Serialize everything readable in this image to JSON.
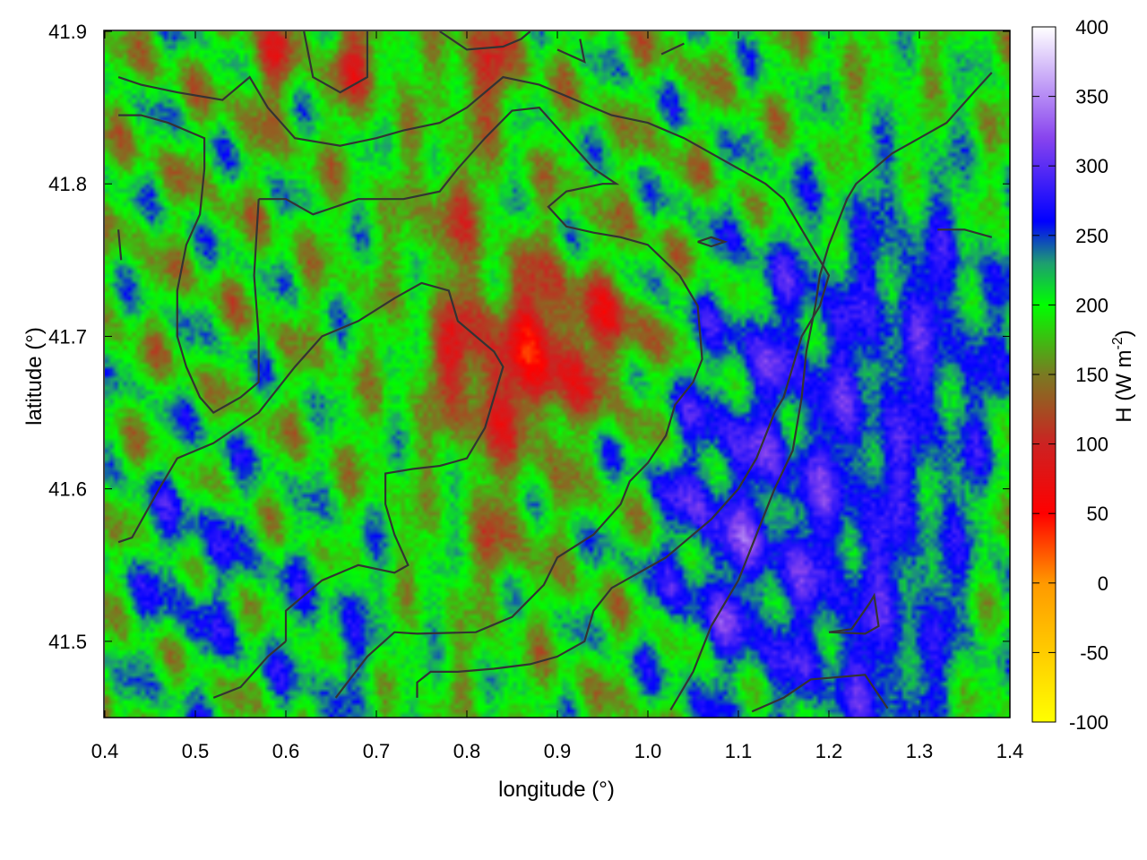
{
  "chart_data": {
    "type": "heatmap",
    "xlabel": "longitude (°)",
    "ylabel": "latitude (°)",
    "colorbar_label": "H (W m-2)",
    "colorbar_label_parts": {
      "base": "H (W m",
      "sup": "-2",
      "close": ")"
    },
    "xlim": [
      0.4,
      1.4
    ],
    "ylim": [
      41.45,
      41.9
    ],
    "x_ticks": [
      "0.4",
      "0.5",
      "0.6",
      "0.7",
      "0.8",
      "0.9",
      "1.0",
      "1.1",
      "1.2",
      "1.3",
      "1.4"
    ],
    "x_tick_values": [
      0.4,
      0.5,
      0.6,
      0.7,
      0.8,
      0.9,
      1.0,
      1.1,
      1.2,
      1.3,
      1.4
    ],
    "y_ticks": [
      "41.5",
      "41.6",
      "41.7",
      "41.8",
      "41.9"
    ],
    "y_tick_values": [
      41.5,
      41.6,
      41.7,
      41.8,
      41.9
    ],
    "colorbar_range": [
      -100,
      400
    ],
    "colorbar_ticks": [
      "400",
      "350",
      "300",
      "250",
      "200",
      "150",
      "100",
      "50",
      "0",
      "-50",
      "-100"
    ],
    "colorbar_tick_values": [
      400,
      350,
      300,
      250,
      200,
      150,
      100,
      50,
      0,
      -50,
      -100
    ],
    "colormap": [
      {
        "value": -100,
        "color": "#ffff00"
      },
      {
        "value": 0,
        "color": "#ff9900"
      },
      {
        "value": 50,
        "color": "#ff0000"
      },
      {
        "value": 100,
        "color": "#cc2222"
      },
      {
        "value": 150,
        "color": "#7a7a22"
      },
      {
        "value": 200,
        "color": "#00ff00"
      },
      {
        "value": 230,
        "color": "#1e9e70"
      },
      {
        "value": 260,
        "color": "#0000ff"
      },
      {
        "value": 320,
        "color": "#8844ee"
      },
      {
        "value": 400,
        "color": "#ffffff"
      }
    ],
    "field_features": [
      {
        "lon": 0.88,
        "lat": 41.69,
        "value": 60,
        "radius": 0.05
      },
      {
        "lon": 0.8,
        "lat": 41.69,
        "value": 95,
        "radius": 0.04
      },
      {
        "lon": 0.83,
        "lat": 41.66,
        "value": 110,
        "radius": 0.04
      },
      {
        "lon": 0.96,
        "lat": 41.7,
        "value": 110,
        "radius": 0.04
      },
      {
        "lon": 0.78,
        "lat": 41.78,
        "value": 120,
        "radius": 0.03
      },
      {
        "lon": 0.82,
        "lat": 41.88,
        "value": 120,
        "radius": 0.04
      },
      {
        "lon": 0.68,
        "lat": 41.88,
        "value": 120,
        "radius": 0.03
      },
      {
        "lon": 0.58,
        "lat": 41.88,
        "value": 125,
        "radius": 0.03
      },
      {
        "lon": 0.84,
        "lat": 41.57,
        "value": 140,
        "radius": 0.03
      },
      {
        "lon": 1.2,
        "lat": 41.6,
        "value": 270,
        "radius": 0.14
      },
      {
        "lon": 1.3,
        "lat": 41.7,
        "value": 265,
        "radius": 0.1
      },
      {
        "lon": 1.1,
        "lat": 41.55,
        "value": 270,
        "radius": 0.08
      },
      {
        "lon": 1.08,
        "lat": 41.6,
        "value": 275,
        "radius": 0.04
      },
      {
        "lon": 1.25,
        "lat": 41.5,
        "value": 265,
        "radius": 0.09
      },
      {
        "lon": 1.15,
        "lat": 41.67,
        "value": 262,
        "radius": 0.08
      },
      {
        "lon": 0.5,
        "lat": 41.55,
        "value": 235,
        "radius": 0.08
      },
      {
        "lon": 0.65,
        "lat": 41.5,
        "value": 232,
        "radius": 0.07
      }
    ],
    "contours": [
      [
        [
          0.415,
          41.565
        ],
        [
          0.43,
          41.568
        ],
        [
          0.46,
          41.6
        ],
        [
          0.48,
          41.62
        ],
        [
          0.52,
          41.63
        ],
        [
          0.57,
          41.65
        ],
        [
          0.61,
          41.68
        ],
        [
          0.64,
          41.7
        ],
        [
          0.68,
          41.71
        ],
        [
          0.72,
          41.725
        ],
        [
          0.75,
          41.735
        ],
        [
          0.78,
          41.73
        ],
        [
          0.79,
          41.71
        ],
        [
          0.83,
          41.69
        ],
        [
          0.84,
          41.68
        ],
        [
          0.83,
          41.66
        ],
        [
          0.82,
          41.64
        ],
        [
          0.8,
          41.62
        ],
        [
          0.77,
          41.615
        ],
        [
          0.74,
          41.613
        ],
        [
          0.71,
          41.61
        ],
        [
          0.71,
          41.59
        ],
        [
          0.72,
          41.57
        ],
        [
          0.735,
          41.55
        ],
        [
          0.72,
          41.545
        ],
        [
          0.68,
          41.55
        ],
        [
          0.64,
          41.54
        ],
        [
          0.6,
          41.52
        ],
        [
          0.6,
          41.5
        ]
      ],
      [
        [
          0.6,
          41.5
        ],
        [
          0.58,
          41.49
        ],
        [
          0.55,
          41.47
        ],
        [
          0.52,
          41.463
        ]
      ],
      [
        [
          0.655,
          41.463
        ],
        [
          0.69,
          41.49
        ],
        [
          0.72,
          41.506
        ],
        [
          0.745,
          41.505
        ],
        [
          0.81,
          41.506
        ],
        [
          0.85,
          41.516
        ],
        [
          0.885,
          41.537
        ],
        [
          0.9,
          41.555
        ],
        [
          0.94,
          41.57
        ],
        [
          0.97,
          41.59
        ],
        [
          0.98,
          41.605
        ],
        [
          1.0,
          41.617
        ],
        [
          1.02,
          41.635
        ],
        [
          1.03,
          41.655
        ],
        [
          1.05,
          41.67
        ],
        [
          1.06,
          41.685
        ],
        [
          1.055,
          41.72
        ],
        [
          1.035,
          41.74
        ],
        [
          1.0,
          41.76
        ],
        [
          0.97,
          41.765
        ],
        [
          0.94,
          41.768
        ],
        [
          0.91,
          41.772
        ],
        [
          0.89,
          41.785
        ],
        [
          0.91,
          41.795
        ],
        [
          0.95,
          41.8
        ],
        [
          0.965,
          41.8
        ],
        [
          0.94,
          41.81
        ],
        [
          0.91,
          41.83
        ],
        [
          0.88,
          41.85
        ],
        [
          0.85,
          41.848
        ],
        [
          0.82,
          41.83
        ],
        [
          0.79,
          41.81
        ],
        [
          0.77,
          41.795
        ],
        [
          0.73,
          41.79
        ],
        [
          0.68,
          41.79
        ],
        [
          0.63,
          41.78
        ],
        [
          0.6,
          41.79
        ],
        [
          0.57,
          41.79
        ]
      ],
      [
        [
          0.57,
          41.79
        ],
        [
          0.565,
          41.74
        ],
        [
          0.57,
          41.7
        ],
        [
          0.57,
          41.67
        ],
        [
          0.55,
          41.66
        ],
        [
          0.52,
          41.65
        ],
        [
          0.505,
          41.66
        ],
        [
          0.49,
          41.68
        ],
        [
          0.48,
          41.7
        ],
        [
          0.48,
          41.73
        ],
        [
          0.49,
          41.76
        ],
        [
          0.505,
          41.78
        ],
        [
          0.51,
          41.81
        ],
        [
          0.51,
          41.83
        ],
        [
          0.47,
          41.84
        ],
        [
          0.44,
          41.845
        ],
        [
          0.415,
          41.845
        ]
      ],
      [
        [
          0.415,
          41.87
        ],
        [
          0.44,
          41.865
        ],
        [
          0.48,
          41.86
        ],
        [
          0.53,
          41.855
        ],
        [
          0.56,
          41.87
        ],
        [
          0.58,
          41.85
        ],
        [
          0.61,
          41.83
        ],
        [
          0.66,
          41.825
        ],
        [
          0.7,
          41.83
        ],
        [
          0.73,
          41.835
        ],
        [
          0.77,
          41.84
        ],
        [
          0.8,
          41.85
        ],
        [
          0.82,
          41.86
        ],
        [
          0.84,
          41.87
        ],
        [
          0.88,
          41.865
        ],
        [
          0.9,
          41.86
        ],
        [
          0.92,
          41.855
        ],
        [
          0.96,
          41.845
        ],
        [
          1.0,
          41.84
        ],
        [
          1.04,
          41.83
        ],
        [
          1.07,
          41.82
        ],
        [
          1.1,
          41.81
        ],
        [
          1.13,
          41.8
        ],
        [
          1.15,
          41.79
        ],
        [
          1.16,
          41.78
        ],
        [
          1.18,
          41.76
        ],
        [
          1.2,
          41.74
        ],
        [
          1.19,
          41.72
        ],
        [
          1.17,
          41.7
        ],
        [
          1.16,
          41.68
        ],
        [
          1.15,
          41.66
        ],
        [
          1.14,
          41.65
        ],
        [
          1.12,
          41.62
        ],
        [
          1.1,
          41.6
        ],
        [
          1.07,
          41.58
        ],
        [
          1.05,
          41.57
        ],
        [
          1.02,
          41.555
        ],
        [
          0.99,
          41.545
        ],
        [
          0.96,
          41.535
        ],
        [
          0.94,
          41.52
        ],
        [
          0.93,
          41.5
        ],
        [
          0.9,
          41.49
        ],
        [
          0.87,
          41.485
        ],
        [
          0.83,
          41.482
        ],
        [
          0.79,
          41.48
        ],
        [
          0.76,
          41.48
        ],
        [
          0.745,
          41.473
        ],
        [
          0.745,
          41.463
        ]
      ],
      [
        [
          0.62,
          41.9
        ],
        [
          0.63,
          41.87
        ],
        [
          0.66,
          41.86
        ],
        [
          0.69,
          41.87
        ],
        [
          0.69,
          41.9
        ]
      ],
      [
        [
          0.77,
          41.9
        ],
        [
          0.8,
          41.888
        ],
        [
          0.84,
          41.89
        ],
        [
          0.86,
          41.895
        ],
        [
          0.87,
          41.9
        ]
      ],
      [
        [
          0.9,
          41.888
        ],
        [
          0.93,
          41.88
        ],
        [
          0.925,
          41.895
        ]
      ],
      [
        [
          1.015,
          41.885
        ],
        [
          1.04,
          41.892
        ]
      ],
      [
        [
          1.055,
          41.762
        ],
        [
          1.07,
          41.765
        ],
        [
          1.085,
          41.762
        ],
        [
          1.07,
          41.759
        ],
        [
          1.055,
          41.762
        ]
      ],
      [
        [
          1.025,
          41.455
        ],
        [
          1.05,
          41.48
        ],
        [
          1.07,
          41.51
        ],
        [
          1.1,
          41.54
        ],
        [
          1.12,
          41.57
        ],
        [
          1.14,
          41.6
        ],
        [
          1.16,
          41.625
        ],
        [
          1.17,
          41.66
        ],
        [
          1.175,
          41.69
        ],
        [
          1.185,
          41.72
        ],
        [
          1.19,
          41.74
        ],
        [
          1.2,
          41.76
        ],
        [
          1.21,
          41.775
        ],
        [
          1.22,
          41.79
        ],
        [
          1.23,
          41.8
        ],
        [
          1.25,
          41.81
        ],
        [
          1.27,
          41.82
        ],
        [
          1.3,
          41.83
        ],
        [
          1.33,
          41.84
        ],
        [
          1.36,
          41.86
        ],
        [
          1.38,
          41.873
        ]
      ],
      [
        [
          1.32,
          41.77
        ],
        [
          1.35,
          41.77
        ],
        [
          1.38,
          41.765
        ]
      ],
      [
        [
          1.2,
          41.506
        ],
        [
          1.225,
          41.508
        ],
        [
          1.245,
          41.525
        ],
        [
          1.25,
          41.53
        ],
        [
          1.255,
          41.51
        ],
        [
          1.24,
          41.505
        ],
        [
          1.2,
          41.506
        ]
      ],
      [
        [
          1.115,
          41.454
        ],
        [
          1.15,
          41.463
        ],
        [
          1.18,
          41.475
        ],
        [
          1.24,
          41.478
        ],
        [
          1.265,
          41.456
        ]
      ],
      [
        [
          0.415,
          41.77
        ],
        [
          0.418,
          41.75
        ]
      ]
    ]
  }
}
